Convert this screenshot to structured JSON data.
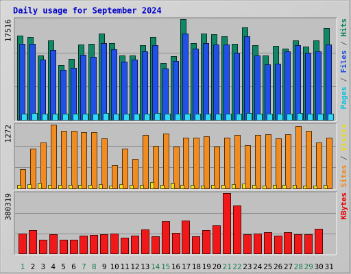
{
  "title": "Daily usage for September 2024",
  "chart_data": {
    "type": "bar",
    "title": "Daily usage for September 2024",
    "categories": [
      "1",
      "2",
      "3",
      "4",
      "5",
      "6",
      "7",
      "8",
      "9",
      "10",
      "11",
      "12",
      "13",
      "14",
      "15",
      "16",
      "17",
      "18",
      "19",
      "20",
      "21",
      "22",
      "23",
      "24",
      "25",
      "26",
      "27",
      "28",
      "29",
      "30",
      "31"
    ],
    "weekend_days": [
      1,
      7,
      8,
      14,
      15,
      21,
      22,
      28,
      29
    ],
    "panels": [
      {
        "id": "traffic",
        "max_label": "17516",
        "ymax": 17516,
        "side_labels": [
          {
            "text": "Pages",
            "color": "#00c0e0"
          },
          {
            "text": " / ",
            "color": "#606060"
          },
          {
            "text": "Files",
            "color": "#1848e0"
          },
          {
            "text": " / ",
            "color": "#606060"
          },
          {
            "text": "Hits",
            "color": "#108060"
          }
        ],
        "series": [
          {
            "name": "Hits",
            "color": "#108868",
            "values": [
              14650,
              14440,
              11200,
              13850,
              9500,
              10590,
              13150,
              13240,
              15070,
              13400,
              11160,
              11160,
              12950,
              14390,
              9900,
              11030,
              17516,
              13290,
              15010,
              14910,
              14590,
              13190,
              16050,
              13000,
              11260,
              12830,
              12420,
              13780,
              12700,
              13860,
              15990
            ]
          },
          {
            "name": "Files",
            "color": "#2050e8",
            "values": [
              13200,
              13170,
              10500,
              12200,
              8700,
              9000,
              11290,
              10990,
              13400,
              12270,
              10080,
              10480,
              11960,
              13030,
              8950,
              10270,
              15040,
              12360,
              13300,
              13090,
              13160,
              11730,
              14590,
              11150,
              9600,
              9790,
              11900,
              13040,
              11660,
              11940,
              13060
            ]
          },
          {
            "name": "Pages",
            "color": "#30d8f8",
            "values": [
              1130,
              1180,
              1060,
              1130,
              1120,
              1080,
              1130,
              1120,
              1160,
              1120,
              1080,
              1060,
              1110,
              1140,
              1040,
              1080,
              1040,
              1080,
              1120,
              1050,
              1090,
              1080,
              1200,
              1110,
              1030,
              1030,
              1080,
              1180,
              1130,
              1090,
              1130
            ]
          }
        ]
      },
      {
        "id": "visits",
        "max_label": "1272",
        "ymax": 1272,
        "side_labels": [
          {
            "text": "Sites",
            "color": "#f08820"
          },
          {
            "text": " / ",
            "color": "#606060"
          },
          {
            "text": "Visits",
            "color": "#e8d820"
          }
        ],
        "series": [
          {
            "name": "Visits",
            "color": "#f08c20",
            "values": [
              380,
              800,
              920,
              1272,
              1145,
              1150,
              1115,
              1125,
              1000,
              460,
              790,
              590,
              1070,
              850,
              1100,
              840,
              1010,
              1010,
              1040,
              840,
              1010,
              1065,
              855,
              1060,
              1080,
              1000,
              1080,
              1250,
              1155,
              910,
              1010
            ]
          },
          {
            "name": "Sites",
            "color": "#f8e020",
            "values": [
              65,
              80,
              110,
              65,
              65,
              65,
              65,
              65,
              85,
              60,
              80,
              65,
              65,
              120,
              65,
              110,
              65,
              65,
              60,
              70,
              65,
              80,
              100,
              65,
              60,
              65,
              65,
              65,
              60,
              60,
              65
            ]
          }
        ]
      },
      {
        "id": "kbytes",
        "max_label": "380319",
        "ymax": 380319,
        "side_labels": [
          {
            "text": "KBytes",
            "color": "#e80000"
          }
        ],
        "series": [
          {
            "name": "KBytes",
            "color": "#f01818",
            "values": [
              124000,
              147000,
              85000,
              119000,
              87000,
              85000,
              114000,
              116000,
              122000,
              126000,
              100000,
              112000,
              152000,
              109000,
              204000,
              130000,
              206000,
              107000,
              147000,
              177000,
              380319,
              301000,
              123000,
              126000,
              136000,
              114000,
              134000,
              121000,
              121000,
              156000,
              0
            ]
          }
        ]
      }
    ]
  }
}
